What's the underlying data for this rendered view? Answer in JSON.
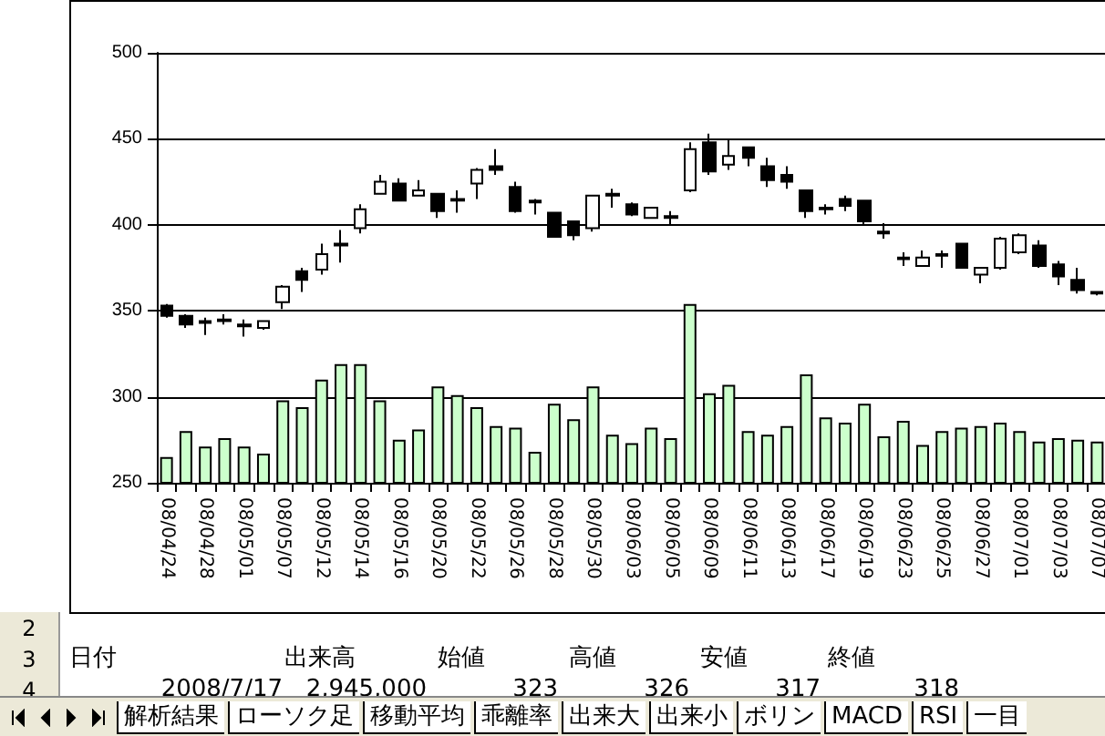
{
  "chart_data": {
    "type": "candlestick",
    "categories": [
      "08/04/24",
      null,
      "08/04/28",
      null,
      "08/05/01",
      null,
      "08/05/07",
      null,
      "08/05/12",
      null,
      "08/05/14",
      null,
      "08/05/16",
      null,
      "08/05/20",
      null,
      "08/05/22",
      null,
      "08/05/26",
      null,
      "08/05/28",
      null,
      "08/05/30",
      null,
      "08/06/03",
      null,
      "08/06/05",
      null,
      "08/06/09",
      null,
      "08/06/11",
      null,
      "08/06/13",
      null,
      "08/06/17",
      null,
      "08/06/19",
      null,
      "08/06/23",
      null,
      "08/06/25",
      null,
      "08/06/27",
      null,
      "08/07/01",
      null,
      "08/07/03",
      null,
      "08/07/07"
    ],
    "series": [
      {
        "type": "bar",
        "color": "#ccffcc",
        "values": [
          265,
          280,
          271,
          276,
          271,
          267,
          298,
          294,
          310,
          319,
          319,
          298,
          275,
          281,
          306,
          301,
          294,
          283,
          282,
          268,
          296,
          287,
          306,
          278,
          273,
          282,
          276,
          354,
          302,
          307,
          280,
          278,
          283,
          313,
          288,
          285,
          296,
          277,
          286,
          272,
          280,
          282,
          283,
          285,
          280,
          274,
          276,
          275,
          274
        ]
      },
      {
        "type": "candlestick",
        "ohlc": [
          [
            353,
            354,
            346,
            347
          ],
          [
            347,
            348,
            340,
            342
          ],
          [
            344,
            346,
            336,
            343
          ],
          [
            345,
            348,
            342,
            344
          ],
          [
            342,
            345,
            335,
            341
          ],
          [
            340,
            344,
            339,
            344
          ],
          [
            355,
            365,
            351,
            364
          ],
          [
            373,
            375,
            361,
            368
          ],
          [
            374,
            389,
            371,
            383
          ],
          [
            389,
            397,
            378,
            388
          ],
          [
            398,
            412,
            395,
            409
          ],
          [
            418,
            429,
            418,
            425
          ],
          [
            424,
            427,
            414,
            414
          ],
          [
            417,
            426,
            417,
            420
          ],
          [
            418,
            418,
            404,
            408
          ],
          [
            415,
            420,
            407,
            414
          ],
          [
            424,
            433,
            415,
            432
          ],
          [
            434,
            444,
            429,
            432
          ],
          [
            422,
            425,
            407,
            408
          ],
          [
            414,
            415,
            406,
            413
          ],
          [
            407,
            407,
            393,
            393
          ],
          [
            402,
            402,
            391,
            394
          ],
          [
            398,
            417,
            396,
            417
          ],
          [
            418,
            421,
            410,
            417
          ],
          [
            412,
            413,
            405,
            406
          ],
          [
            404,
            410,
            404,
            410
          ],
          [
            405,
            408,
            400,
            404
          ],
          [
            420,
            448,
            419,
            444
          ],
          [
            448,
            453,
            429,
            431
          ],
          [
            435,
            450,
            432,
            440
          ],
          [
            445,
            445,
            434,
            439
          ],
          [
            434,
            439,
            422,
            426
          ],
          [
            429,
            434,
            421,
            425
          ],
          [
            420,
            420,
            404,
            408
          ],
          [
            410,
            412,
            406,
            409
          ],
          [
            415,
            417,
            408,
            411
          ],
          [
            414,
            414,
            400,
            402
          ],
          [
            396,
            401,
            392,
            395
          ],
          [
            381,
            384,
            376,
            380
          ],
          [
            376,
            385,
            376,
            381
          ],
          [
            383,
            385,
            375,
            382
          ],
          [
            389,
            389,
            375,
            375
          ],
          [
            371,
            375,
            366,
            375
          ],
          [
            375,
            393,
            374,
            392
          ],
          [
            384,
            395,
            383,
            394
          ],
          [
            388,
            391,
            375,
            376
          ],
          [
            377,
            379,
            365,
            370
          ],
          [
            368,
            375,
            360,
            362
          ],
          [
            361,
            361,
            359,
            360
          ]
        ],
        "colors": [
          "#000000",
          "#000000",
          "#000000",
          "#000000",
          "#000000",
          "#ffffff",
          "#ffffff",
          "#000000",
          "#ffffff",
          "#000000",
          "#ffffff",
          "#ffffff",
          "#000000",
          "#ffffff",
          "#000000",
          "#000000",
          "#ffffff",
          "#000000",
          "#000000",
          "#000000",
          "#000000",
          "#000000",
          "#ffffff",
          "#000000",
          "#000000",
          "#ffffff",
          "#000000",
          "#ffffff",
          "#000000",
          "#ffffff",
          "#000000",
          "#000000",
          "#000000",
          "#000000",
          "#000000",
          "#000000",
          "#000000",
          "#000000",
          "#000000",
          "#ffffff",
          "#000000",
          "#000000",
          "#ffffff",
          "#ffffff",
          "#ffffff",
          "#000000",
          "#000000",
          "#000000",
          "#000000"
        ]
      }
    ],
    "ylim": [
      250,
      500
    ],
    "yticks": [
      250,
      300,
      350,
      400,
      450,
      500
    ],
    "grid": "y",
    "annotations": [
      "2",
      "3",
      "4",
      "日付",
      "出来高",
      "始値",
      "高値",
      "安値",
      "終値",
      "2008/7/17",
      "2,945,000",
      "323",
      "326",
      "317",
      "318",
      "解析結果",
      "ローソク足",
      "移動平均",
      "乖離率",
      "出来大",
      "出来小",
      "ボリン",
      "MACD",
      "RSI",
      "一目"
    ]
  }
}
